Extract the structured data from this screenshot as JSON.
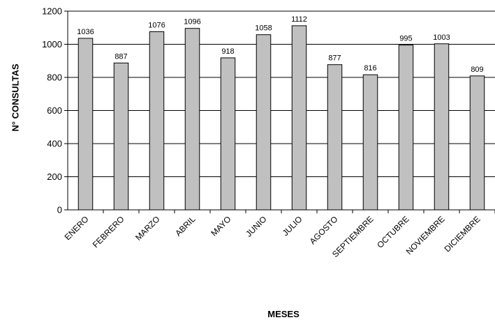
{
  "chart_data": {
    "type": "bar",
    "title": "",
    "xlabel": "MESES",
    "ylabel": "N° CONSULTAS",
    "categories": [
      "ENERO",
      "FEBRERO",
      "MARZO",
      "ABRIL",
      "MAYO",
      "JUNIO",
      "JULIO",
      "AGOSTO",
      "SEPTIEMBRE",
      "OCTUBRE",
      "NOVIEMBRE",
      "DICIEMBRE"
    ],
    "values": [
      1036,
      887,
      1076,
      1096,
      918,
      1058,
      1112,
      877,
      816,
      995,
      1003,
      809
    ],
    "data_labels": [
      "1036",
      "887",
      "1076",
      "1096",
      "918",
      "1058",
      "1112",
      "877",
      "816",
      "995",
      "1003",
      "809"
    ],
    "ylim": [
      0,
      1200
    ],
    "yticks": [
      0,
      200,
      400,
      600,
      800,
      1000,
      1200
    ],
    "grid": true,
    "legend": false,
    "colors": {
      "bar_fill": "#c0c0c0",
      "bar_stroke": "#000000",
      "grid": "#000000",
      "axis": "#000000"
    }
  }
}
